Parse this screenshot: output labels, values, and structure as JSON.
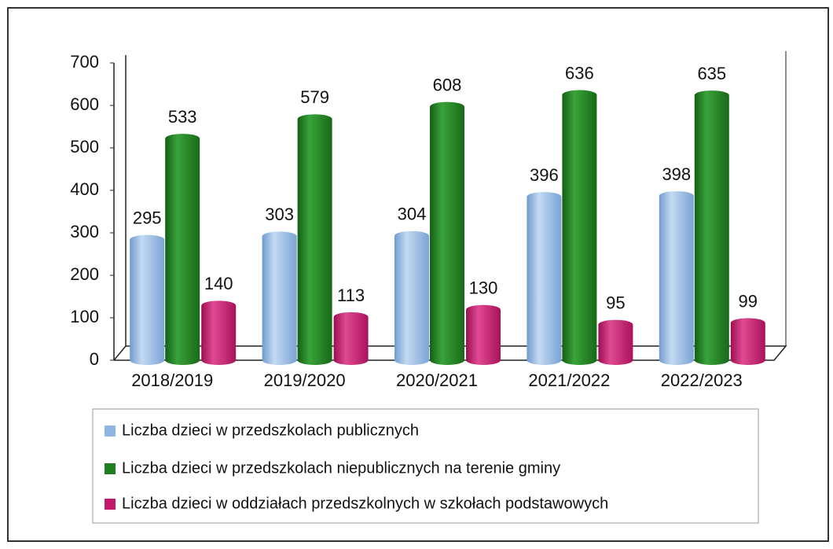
{
  "chart_data": {
    "type": "bar",
    "categories": [
      "2018/2019",
      "2019/2020",
      "2020/2021",
      "2021/2022",
      "2022/2023"
    ],
    "series": [
      {
        "name": "Liczba dzieci w przedszkolach publicznych",
        "color": "#8db4e2",
        "values": [
          295,
          303,
          304,
          396,
          398
        ]
      },
      {
        "name": "Liczba dzieci w przedszkolach niepublicznych na terenie gminy",
        "color": "#1f7f1f",
        "values": [
          533,
          579,
          608,
          636,
          635
        ]
      },
      {
        "name": "Liczba dzieci w oddziałach przedszkolnych w szkołach podstawowych",
        "color": "#c2186b",
        "values": [
          140,
          113,
          130,
          95,
          99
        ]
      }
    ],
    "ylim": [
      0,
      700
    ],
    "yticks": [
      0,
      100,
      200,
      300,
      400,
      500,
      600,
      700
    ],
    "legend": "bottom"
  }
}
